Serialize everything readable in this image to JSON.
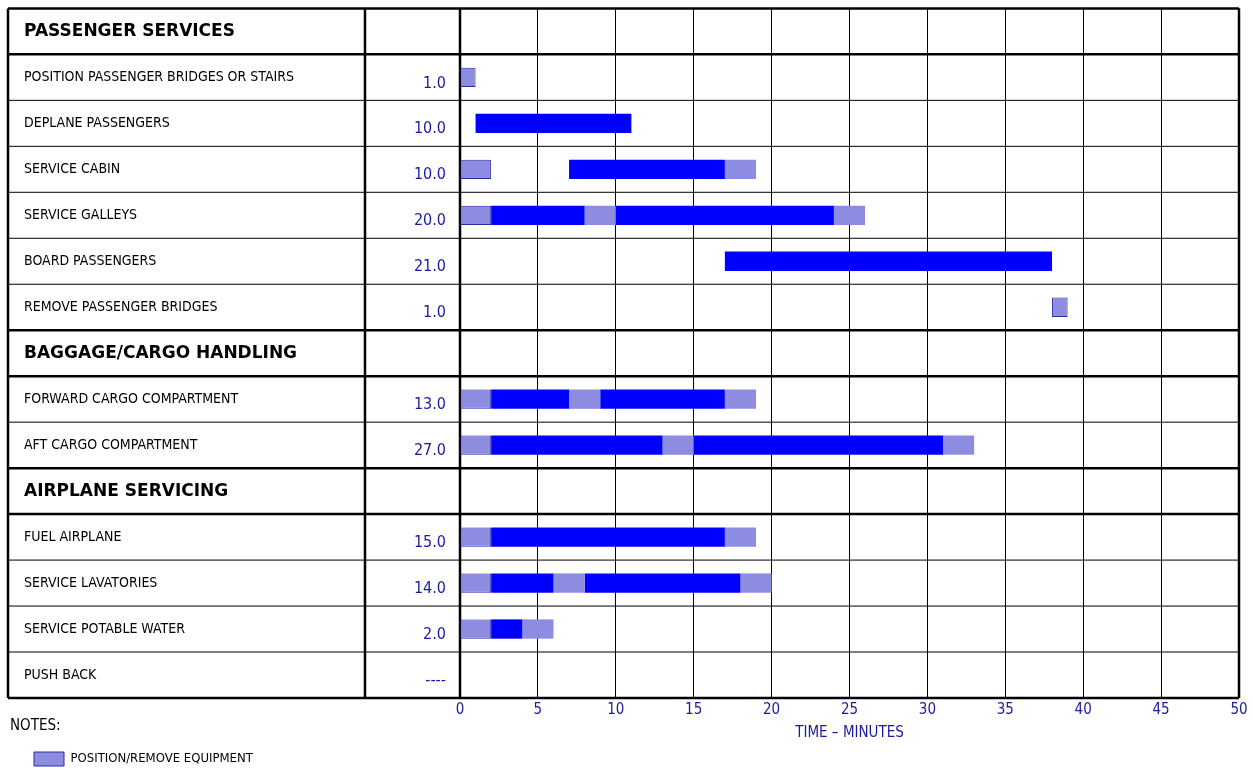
{
  "chart_data": {
    "type": "bar",
    "orientation": "horizontal",
    "xlabel": "TIME – MINUTES",
    "categories": [
      "PASSENGER SERVICES",
      "POSITION PASSENGER BRIDGES OR STAIRS",
      "DEPLANE PASSENGERS",
      "SERVICE CABIN",
      "SERVICE GALLEYS",
      "BOARD PASSENGERS",
      "REMOVE PASSENGER BRIDGES",
      "BAGGAGE/CARGO HANDLING",
      "FORWARD CARGO COMPARTMENT",
      "AFT CARGO COMPARTMENT",
      "AIRPLANE SERVICING",
      "FUEL AIRPLANE",
      "SERVICE LAVATORIES",
      "SERVICE POTABLE WATER",
      "PUSH BACK"
    ],
    "y2_categories": [
      null,
      "1.0",
      "10.0",
      "10.0",
      "20.0",
      "21.0",
      "1.0",
      null,
      "13.0",
      "27.0",
      null,
      "15.0",
      "14.0",
      "2.0",
      "----"
    ],
    "series": [
      {
        "name": "POSITION/REMOVE EQUIPMENT",
        "color": "#8c8ce0",
        "base": [
          null,
          0,
          null,
          0,
          0,
          null,
          38,
          null,
          0,
          0,
          null,
          0,
          0,
          0,
          null
        ],
        "values": [
          null,
          1,
          null,
          2,
          2,
          null,
          1,
          null,
          2,
          2,
          null,
          2,
          2,
          2,
          null
        ]
      },
      {
        "color": "#0000ff",
        "base": [
          null,
          null,
          1,
          7,
          2,
          17,
          null,
          null,
          2,
          2,
          null,
          2,
          2,
          2,
          null
        ],
        "values": [
          null,
          null,
          10,
          10,
          6,
          21,
          null,
          null,
          5,
          11,
          null,
          15,
          4,
          2,
          null
        ]
      },
      {
        "color": "#8c8ce0",
        "base": [
          null,
          null,
          null,
          17,
          8,
          null,
          null,
          null,
          7,
          13,
          null,
          17,
          6,
          4,
          null
        ],
        "values": [
          null,
          null,
          null,
          2,
          2,
          null,
          null,
          null,
          2,
          2,
          null,
          2,
          2,
          2,
          null
        ]
      },
      {
        "color": "#0000ff",
        "base": [
          null,
          null,
          null,
          null,
          10,
          null,
          null,
          null,
          9,
          15,
          null,
          null,
          8,
          null,
          null
        ],
        "values": [
          null,
          null,
          null,
          null,
          14,
          null,
          null,
          null,
          8,
          16,
          null,
          null,
          10,
          null,
          null
        ]
      },
      {
        "color": "#8c8ce0",
        "base": [
          null,
          null,
          null,
          null,
          24,
          null,
          null,
          null,
          17,
          31,
          null,
          null,
          18,
          null,
          null
        ],
        "values": [
          null,
          null,
          null,
          null,
          2,
          null,
          null,
          null,
          2,
          2,
          null,
          null,
          2,
          null,
          null
        ]
      }
    ],
    "xlim": [
      0,
      50
    ],
    "xticks": [
      0,
      5,
      10,
      15,
      20,
      25,
      30,
      35,
      40,
      45,
      50
    ],
    "grid": "x",
    "legend": "bottom left",
    "annotations": [
      "NOTES:"
    ]
  }
}
